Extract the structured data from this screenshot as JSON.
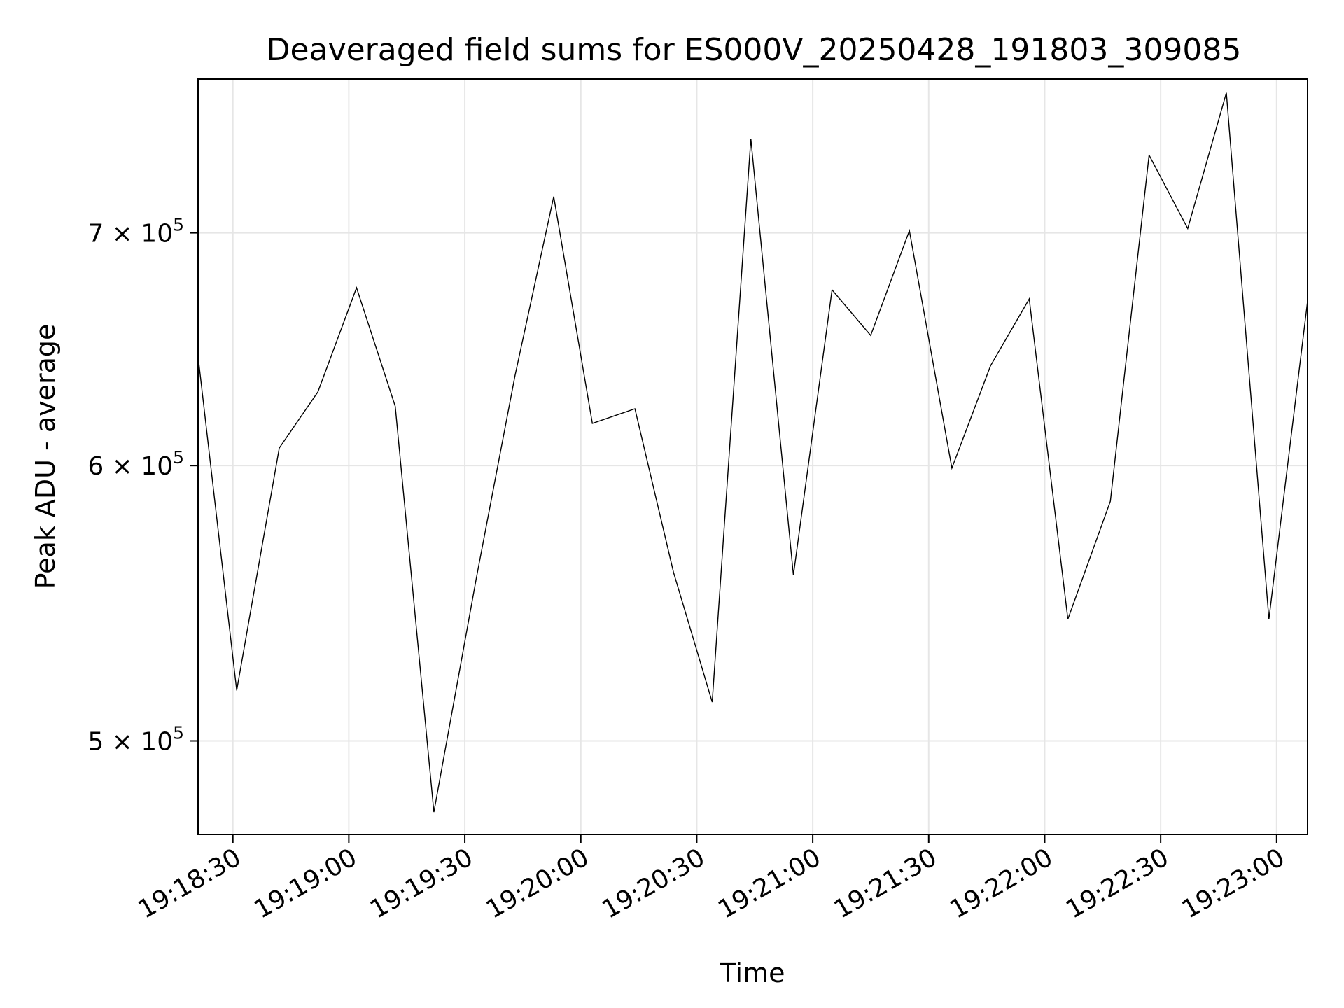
{
  "chart_data": {
    "type": "line",
    "title": "Deaveraged field sums for ES000V_20250428_191803_309085",
    "xlabel": "Time",
    "ylabel": "Peak ADU - average",
    "yscale": "log",
    "grid": true,
    "xlim": [
      "19:18:21",
      "19:23:08"
    ],
    "ylim": [
      470000,
      775000
    ],
    "x_ticks": [
      "19:18:30",
      "19:19:00",
      "19:19:30",
      "19:20:00",
      "19:20:30",
      "19:21:00",
      "19:21:30",
      "19:22:00",
      "19:22:30",
      "19:23:00"
    ],
    "y_ticks": [
      {
        "value": 500000,
        "mantissa": "5",
        "exponent": "5"
      },
      {
        "value": 600000,
        "mantissa": "6",
        "exponent": "5"
      },
      {
        "value": 700000,
        "mantissa": "7",
        "exponent": "5"
      }
    ],
    "line_color": "#000000",
    "grid_color": "#e6e6e6",
    "series": [
      {
        "x": [
          "19:18:21",
          "19:18:31",
          "19:18:42",
          "19:18:52",
          "19:19:02",
          "19:19:12",
          "19:19:22",
          "19:19:33",
          "19:19:43",
          "19:19:53",
          "19:20:03",
          "19:20:14",
          "19:20:24",
          "19:20:34",
          "19:20:44",
          "19:20:55",
          "19:21:05",
          "19:21:15",
          "19:21:25",
          "19:21:36",
          "19:21:46",
          "19:21:56",
          "19:22:06",
          "19:22:17",
          "19:22:27",
          "19:22:37",
          "19:22:47",
          "19:22:58",
          "19:23:08"
        ],
        "y": [
          645000,
          517000,
          607000,
          630000,
          675000,
          624000,
          477000,
          557000,
          637000,
          717000,
          617000,
          623000,
          559000,
          513000,
          745000,
          558000,
          674000,
          654000,
          701000,
          599000,
          641000,
          670000,
          542000,
          586000,
          737000,
          702000,
          768000,
          542000,
          669000
        ]
      }
    ]
  }
}
